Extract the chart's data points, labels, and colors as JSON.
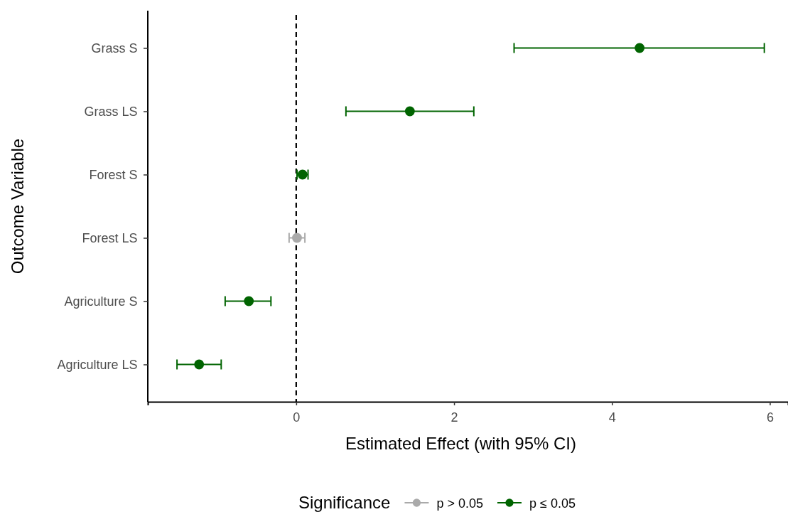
{
  "chart_data": {
    "type": "scatter",
    "orientation": "horizontal",
    "xlabel": "Estimated Effect (with 95% CI)",
    "ylabel": "Outcome Variable",
    "legend_title": "Significance",
    "categories": [
      "Grass S",
      "Grass LS",
      "Forest S",
      "Forest LS",
      "Agriculture S",
      "Agriculture LS"
    ],
    "series": [
      {
        "name": "p > 0.05",
        "color": "#aaaaaa",
        "values": [
          null,
          null,
          null,
          0.01,
          null,
          null
        ],
        "errors": [
          null,
          null,
          null,
          [
            -0.09,
            0.11
          ],
          null,
          null
        ]
      },
      {
        "name": "p ≤ 0.05",
        "color": "#006400",
        "values": [
          4.35,
          1.44,
          0.08,
          null,
          -0.6,
          -1.23
        ],
        "errors": [
          [
            2.76,
            5.93
          ],
          [
            0.63,
            2.25
          ],
          [
            0.01,
            0.15
          ],
          null,
          [
            -0.9,
            -0.32
          ],
          [
            -1.51,
            -0.95
          ]
        ]
      }
    ],
    "xlim": [
      -1.88,
      6.23
    ],
    "xticks": [
      0,
      2,
      4,
      6
    ],
    "ref_lines": [
      {
        "axis": "x",
        "value": 0,
        "line_style": "dashed",
        "color": "#000000"
      }
    ],
    "marker": "circle",
    "legend": "bottom",
    "grid": false
  }
}
